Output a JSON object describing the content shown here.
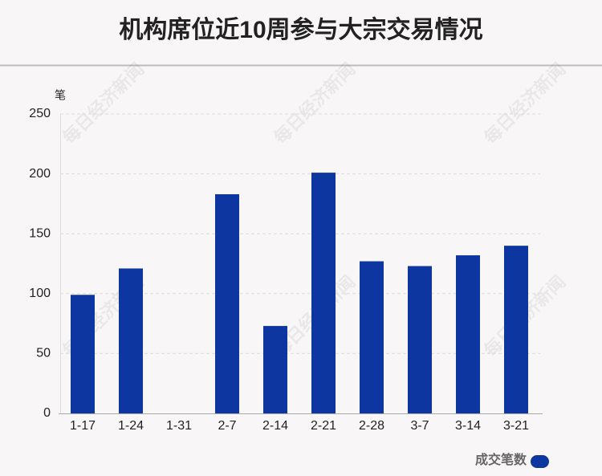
{
  "chart_data": {
    "type": "bar",
    "title": "机构席位近10周参与大宗交易情况",
    "y_label": "笔",
    "categories": [
      "1-17",
      "1-24",
      "1-31",
      "2-7",
      "2-14",
      "2-21",
      "2-28",
      "3-7",
      "3-14",
      "3-21"
    ],
    "series": [
      {
        "name": "成交笔数",
        "color": "#0e36a0",
        "values": [
          99,
          121,
          0,
          183,
          73,
          201,
          127,
          123,
          132,
          140
        ]
      }
    ],
    "ylim": [
      0,
      250
    ],
    "yticks": [
      0,
      50,
      100,
      150,
      200,
      250
    ],
    "grid": true,
    "legend": "bottom-right",
    "watermark": "每日经济新闻"
  }
}
